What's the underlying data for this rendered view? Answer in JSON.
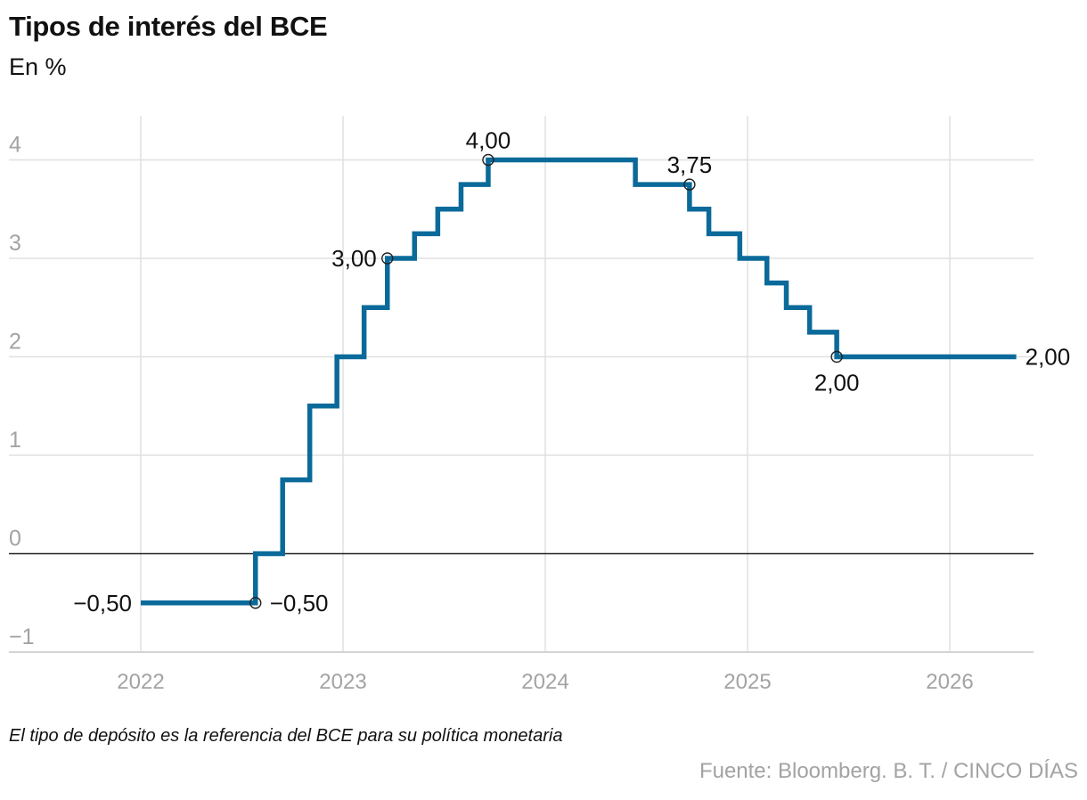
{
  "header": {
    "title": "Tipos de interés del BCE",
    "subtitle": "En %"
  },
  "footer": {
    "note": "El tipo de depósito es la referencia del BCE para su política monetaria",
    "source": "Fuente: Bloomberg. B. T. / CINCO DÍAS"
  },
  "colors": {
    "line": "#0a6a9a",
    "grid": "#e0e0e0",
    "axis_label": "#a3a3a3",
    "zero_line": "#222222"
  },
  "chart_data": {
    "type": "line",
    "step": true,
    "series": [
      {
        "points": [
          [
            "2022-01-01",
            -0.5
          ],
          [
            "2022-07-27",
            0.0
          ],
          [
            "2022-09-14",
            0.75
          ],
          [
            "2022-11-02",
            1.5
          ],
          [
            "2022-12-21",
            2.0
          ],
          [
            "2023-02-08",
            2.5
          ],
          [
            "2023-03-22",
            3.0
          ],
          [
            "2023-05-10",
            3.25
          ],
          [
            "2023-06-21",
            3.5
          ],
          [
            "2023-08-02",
            3.75
          ],
          [
            "2023-09-20",
            4.0
          ],
          [
            "2024-06-12",
            3.75
          ],
          [
            "2024-09-18",
            3.5
          ],
          [
            "2024-10-23",
            3.25
          ],
          [
            "2024-12-18",
            3.0
          ],
          [
            "2025-02-05",
            2.75
          ],
          [
            "2025-03-12",
            2.5
          ],
          [
            "2025-04-23",
            2.25
          ],
          [
            "2025-06-11",
            2.0
          ],
          [
            "2026-05-01",
            2.0
          ]
        ]
      }
    ],
    "annotations": [
      {
        "date": "2022-01-01",
        "value": -0.5,
        "label": "−0,50",
        "marker": false,
        "pos": "left"
      },
      {
        "date": "2022-07-27",
        "value": -0.5,
        "label": "−0,50",
        "marker": true,
        "pos": "right"
      },
      {
        "date": "2023-03-22",
        "value": 3.0,
        "label": "3,00",
        "marker": true,
        "pos": "left"
      },
      {
        "date": "2023-09-20",
        "value": 4.0,
        "label": "4,00",
        "marker": true,
        "pos": "above"
      },
      {
        "date": "2024-09-18",
        "value": 3.75,
        "label": "3,75",
        "marker": true,
        "pos": "above"
      },
      {
        "date": "2025-06-11",
        "value": 2.0,
        "label": "2,00",
        "marker": true,
        "pos": "below"
      },
      {
        "date": "2026-05-01",
        "value": 2.0,
        "label": "2,00",
        "marker": false,
        "pos": "right"
      }
    ],
    "y_ticks": [
      {
        "value": -1,
        "label": "−1"
      },
      {
        "value": 0,
        "label": "0"
      },
      {
        "value": 1,
        "label": "1"
      },
      {
        "value": 2,
        "label": "2"
      },
      {
        "value": 3,
        "label": "3"
      },
      {
        "value": 4,
        "label": "4"
      }
    ],
    "x_ticks": [
      {
        "date": "2022-01-01",
        "label": "2022"
      },
      {
        "date": "2023-01-01",
        "label": "2023"
      },
      {
        "date": "2024-01-01",
        "label": "2024"
      },
      {
        "date": "2025-01-01",
        "label": "2025"
      },
      {
        "date": "2026-01-01",
        "label": "2026"
      }
    ],
    "ylim": [
      -1,
      4.5
    ],
    "xlim": [
      "2021-05-01",
      "2026-07-01"
    ],
    "grid": true
  }
}
